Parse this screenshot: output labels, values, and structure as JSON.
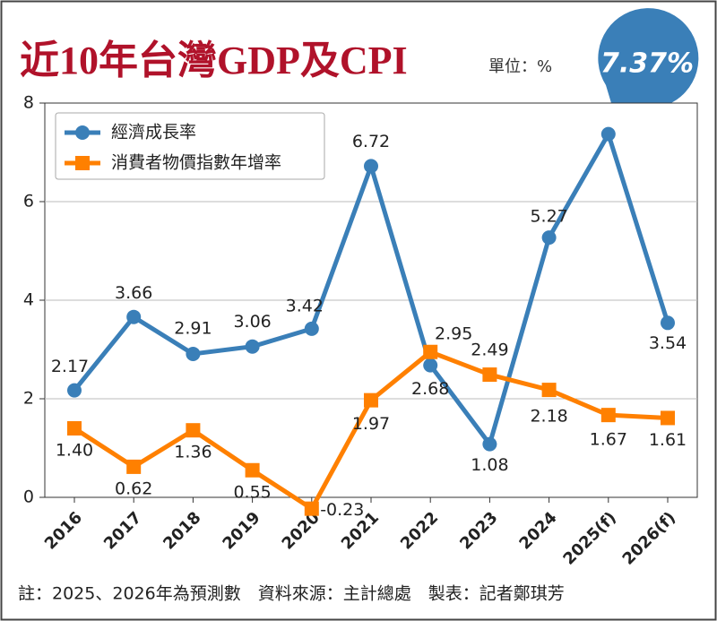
{
  "chart_data": {
    "type": "line",
    "title": "近10年台灣GDP及CPI",
    "unit_label": "單位：%",
    "note": "註：2025、2026年為預測數　資料來源：主計總處　製表：記者鄭琪芳",
    "categories": [
      "2016",
      "2017",
      "2018",
      "2019",
      "2020",
      "2021",
      "2022",
      "2023",
      "2024",
      "2025(f)",
      "2026(f)"
    ],
    "series": [
      {
        "name": "經濟成長率",
        "color": "#3a7fb8",
        "marker": "circle",
        "values": [
          2.17,
          3.66,
          2.91,
          3.06,
          3.42,
          6.72,
          2.68,
          1.08,
          5.27,
          7.37,
          3.54
        ],
        "value_labels": [
          "2.17",
          "3.66",
          "2.91",
          "3.06",
          "3.42",
          "6.72",
          "2.68",
          "1.08",
          "5.27",
          "7.37%",
          "3.54"
        ]
      },
      {
        "name": "消費者物價指數年增率",
        "color": "#ff8000",
        "marker": "square",
        "values": [
          1.4,
          0.62,
          1.36,
          0.55,
          -0.23,
          1.97,
          2.95,
          2.49,
          2.18,
          1.67,
          1.61
        ],
        "value_labels": [
          "1.40",
          "0.62",
          "1.36",
          "0.55",
          "-0.23",
          "1.97",
          "2.95",
          "2.49",
          "2.18",
          "1.67",
          "1.61"
        ]
      }
    ],
    "ylim": [
      0,
      8
    ],
    "yticks": [
      0,
      2,
      4,
      6,
      8
    ],
    "grid": true,
    "legend": "upper left"
  }
}
